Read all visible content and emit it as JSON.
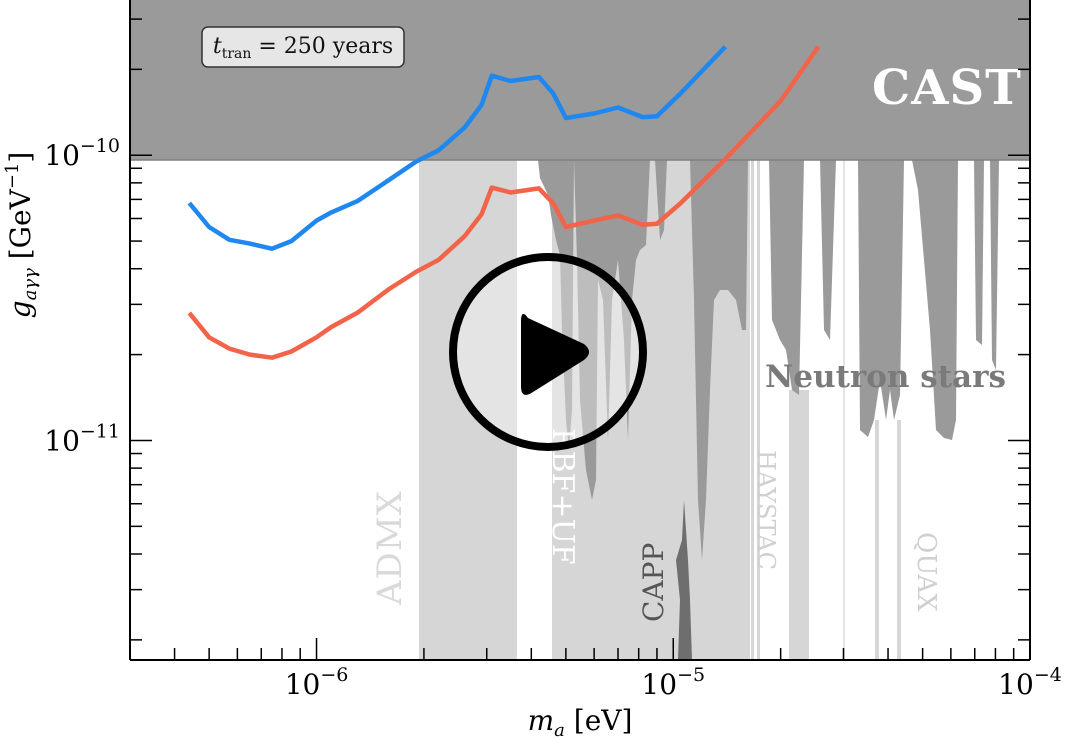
{
  "chart_data": {
    "type": "line",
    "x_scale": "log",
    "y_scale": "log",
    "xlim": [
      3e-07,
      0.0001
    ],
    "ylim": [
      1.7e-12,
      3.5e-10
    ],
    "xlabel": "m_a [eV]",
    "ylabel": "g_aγγ [GeV^-1]",
    "xticks": [
      {
        "value": 1e-06,
        "label": "10^-6"
      },
      {
        "value": 1e-05,
        "label": "10^-5"
      },
      {
        "value": 0.0001,
        "label": "10^-4"
      }
    ],
    "yticks": [
      {
        "value": 1e-10,
        "label": "10^-10"
      },
      {
        "value": 1e-11,
        "label": "10^-11"
      }
    ],
    "annotation": "t_tran = 250 years",
    "series": [
      {
        "color": "#1e88f0",
        "x": [
          4.4e-07,
          5e-07,
          5.7e-07,
          6.5e-07,
          7.5e-07,
          8.5e-07,
          1e-06,
          1.1e-06,
          1.3e-06,
          1.6e-06,
          1.9e-06,
          2.2e-06,
          2.6e-06,
          2.9e-06,
          3.1e-06,
          3.5e-06,
          4.2e-06,
          4.6e-06,
          5e-06,
          6e-06,
          7e-06,
          8.2e-06,
          9e-06,
          1.05e-05,
          1.4e-05
        ],
        "y": [
          6.8e-11,
          5.6e-11,
          5.05e-11,
          4.9e-11,
          4.7e-11,
          5e-11,
          5.9e-11,
          6.3e-11,
          6.9e-11,
          8.2e-11,
          9.5e-11,
          1.04e-10,
          1.25e-10,
          1.5e-10,
          1.9e-10,
          1.82e-10,
          1.88e-10,
          1.65e-10,
          1.35e-10,
          1.4e-10,
          1.47e-10,
          1.36e-10,
          1.37e-10,
          1.65e-10,
          2.4e-10
        ]
      },
      {
        "color": "#f26449",
        "x": [
          4.4e-07,
          5e-07,
          5.7e-07,
          6.5e-07,
          7.5e-07,
          8.5e-07,
          1e-06,
          1.1e-06,
          1.3e-06,
          1.6e-06,
          1.9e-06,
          2.2e-06,
          2.6e-06,
          2.9e-06,
          3.1e-06,
          3.5e-06,
          4.2e-06,
          4.6e-06,
          5e-06,
          6e-06,
          7e-06,
          8.2e-06,
          9e-06,
          1.05e-05,
          1.4e-05,
          2e-05,
          2.55e-05
        ],
        "y": [
          2.8e-11,
          2.3e-11,
          2.1e-11,
          2e-11,
          1.95e-11,
          2.05e-11,
          2.3e-11,
          2.5e-11,
          2.8e-11,
          3.4e-11,
          3.9e-11,
          4.3e-11,
          5.2e-11,
          6.2e-11,
          7.7e-11,
          7.4e-11,
          7.65e-11,
          6.8e-11,
          5.6e-11,
          5.9e-11,
          6.15e-11,
          5.7e-11,
          5.75e-11,
          6.8e-11,
          9.7e-11,
          1.55e-10,
          2.4e-10
        ]
      }
    ],
    "shaded_regions": [
      {
        "label": "CAST",
        "x_range": [
          3e-07,
          0.0001
        ],
        "y_range": [
          6.6e-11,
          3.5e-10
        ],
        "color": "#9a9a9a"
      },
      {
        "label": "ADMX",
        "x_range": [
          1.9e-06,
          3.7e-06
        ],
        "y_top": 6.6e-11,
        "color": "#d6d6d6"
      },
      {
        "label": "RBF+UF",
        "x_range": [
          4.5e-06,
          1.65e-05
        ],
        "y_top": 6.6e-11,
        "color": "#d6d6d6"
      },
      {
        "label": "CAPP",
        "x_range": [
          1e-05,
          1.1e-05
        ],
        "y_top": 6.6e-11,
        "color": "#6e6e6e"
      },
      {
        "label": "HAYSTAC",
        "x_range": [
          2.2e-05,
          2.4e-05
        ],
        "y_top": 1.1e-11,
        "color": "#d6d6d6"
      },
      {
        "label": "QUAX",
        "x_range": [
          3.7e-05,
          4.5e-05
        ],
        "y_top": 1.6e-11,
        "color": "#d6d6d6"
      },
      {
        "label": "Neutron stars",
        "x_range": [
          4.9e-06,
          8.5e-05
        ],
        "y_top": 6.6e-11,
        "color": "#9a9a9a"
      }
    ]
  }
}
